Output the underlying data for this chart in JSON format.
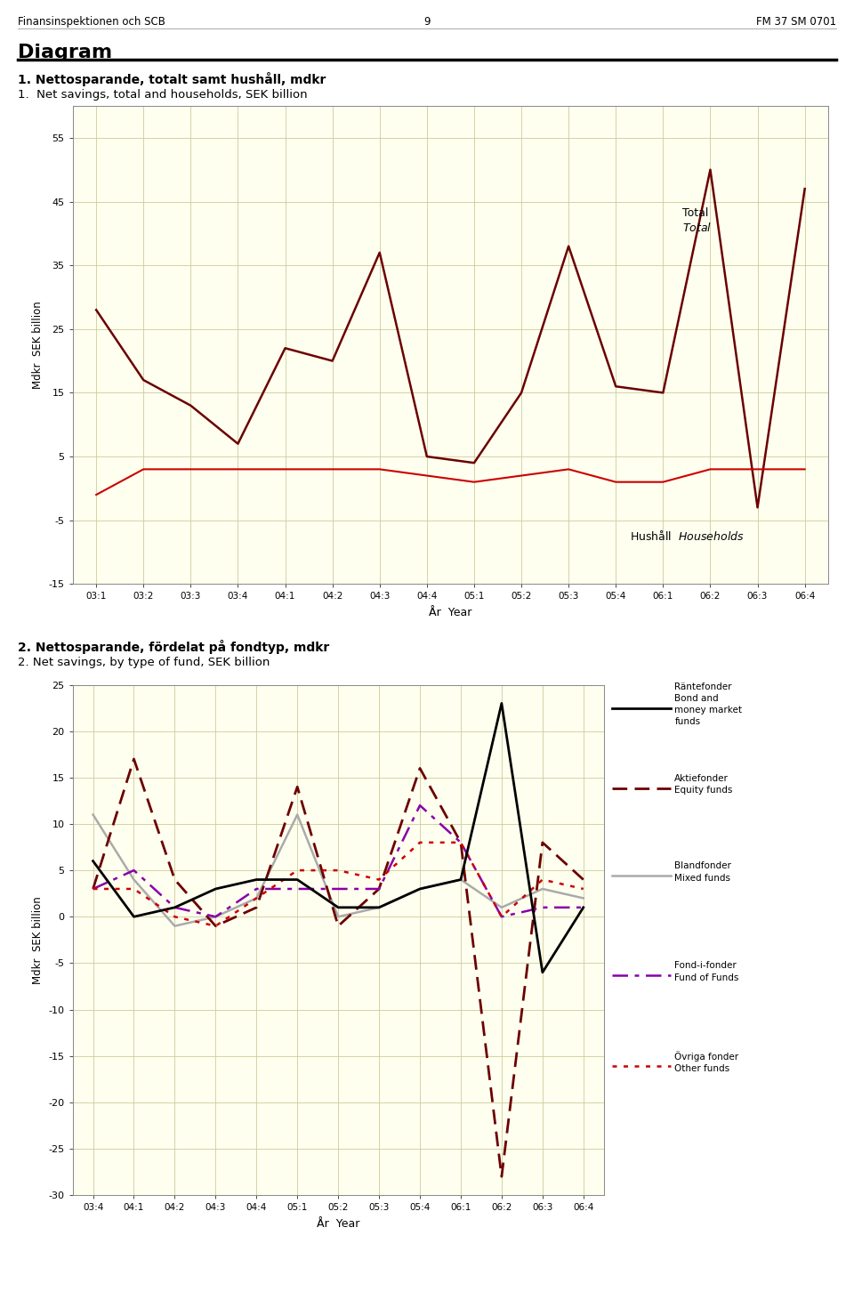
{
  "header_left": "Finansinspektionen och SCB",
  "header_center": "9",
  "header_right": "FM 37 SM 0701",
  "diagram_title": "Diagram",
  "chart1_title_sv": "1. Nettosparande, totalt samt hushåll, mdkr",
  "chart1_title_en": "1.  Net savings, total and households, SEK billion",
  "chart2_title_sv": "2. Nettosparande, fördelat på fondtyp, mdkr",
  "chart2_title_en": "2. Net savings, by type of fund, SEK billion",
  "chart1_xlabel": "År  Year",
  "chart1_ylabel": "Mdkr  SEK billion",
  "chart2_xlabel": "År  Year",
  "chart2_ylabel": "Mdkr  SEK billion",
  "chart1_xticks": [
    "03:1",
    "03:2",
    "03:3",
    "03:4",
    "04:1",
    "04:2",
    "04:3",
    "04:4",
    "05:1",
    "05:2",
    "05:3",
    "05:4",
    "06:1",
    "06:2",
    "06:3",
    "06:4"
  ],
  "chart2_xticks": [
    "03:4",
    "04:1",
    "04:2",
    "04:3",
    "04:4",
    "05:1",
    "05:2",
    "05:3",
    "05:4",
    "06:1",
    "06:2",
    "06:3",
    "06:4"
  ],
  "chart1_ylim": [
    -15,
    60
  ],
  "chart1_yticks": [
    -15,
    -5,
    5,
    15,
    25,
    35,
    45,
    55
  ],
  "chart2_ylim": [
    -30,
    25
  ],
  "chart2_yticks": [
    -30,
    -25,
    -20,
    -15,
    -10,
    -5,
    0,
    5,
    10,
    15,
    20,
    25
  ],
  "plot_bg_color": "#fffff0",
  "total_color": "#6b0000",
  "households_color": "#cc0000",
  "chart1_total": [
    28,
    17,
    13,
    7,
    22,
    20,
    37,
    5,
    4,
    15,
    38,
    16,
    15,
    50,
    -3,
    47
  ],
  "chart1_households": [
    -1,
    3,
    3,
    3,
    3,
    3,
    3,
    2,
    1,
    2,
    3,
    1,
    1,
    3,
    3,
    3
  ],
  "bond_color": "#000000",
  "equity_color": "#6b0000",
  "mixed_color": "#aaaaaa",
  "fof_color": "#8800aa",
  "other_color": "#cc0000",
  "chart2_bond": [
    6,
    0,
    1,
    3,
    4,
    4,
    1,
    1,
    3,
    4,
    23,
    -6,
    1
  ],
  "chart2_equity": [
    3,
    17,
    4,
    -1,
    1,
    14,
    -1,
    3,
    16,
    8,
    -28,
    8,
    4
  ],
  "chart2_mixed": [
    11,
    4,
    -1,
    0,
    2,
    11,
    0,
    1,
    3,
    4,
    1,
    3,
    2
  ],
  "chart2_fof": [
    3,
    5,
    1,
    0,
    3,
    3,
    3,
    3,
    12,
    8,
    0,
    1,
    1
  ],
  "chart2_other": [
    3,
    3,
    0,
    -1,
    2,
    5,
    5,
    4,
    8,
    8,
    0,
    4,
    3
  ]
}
